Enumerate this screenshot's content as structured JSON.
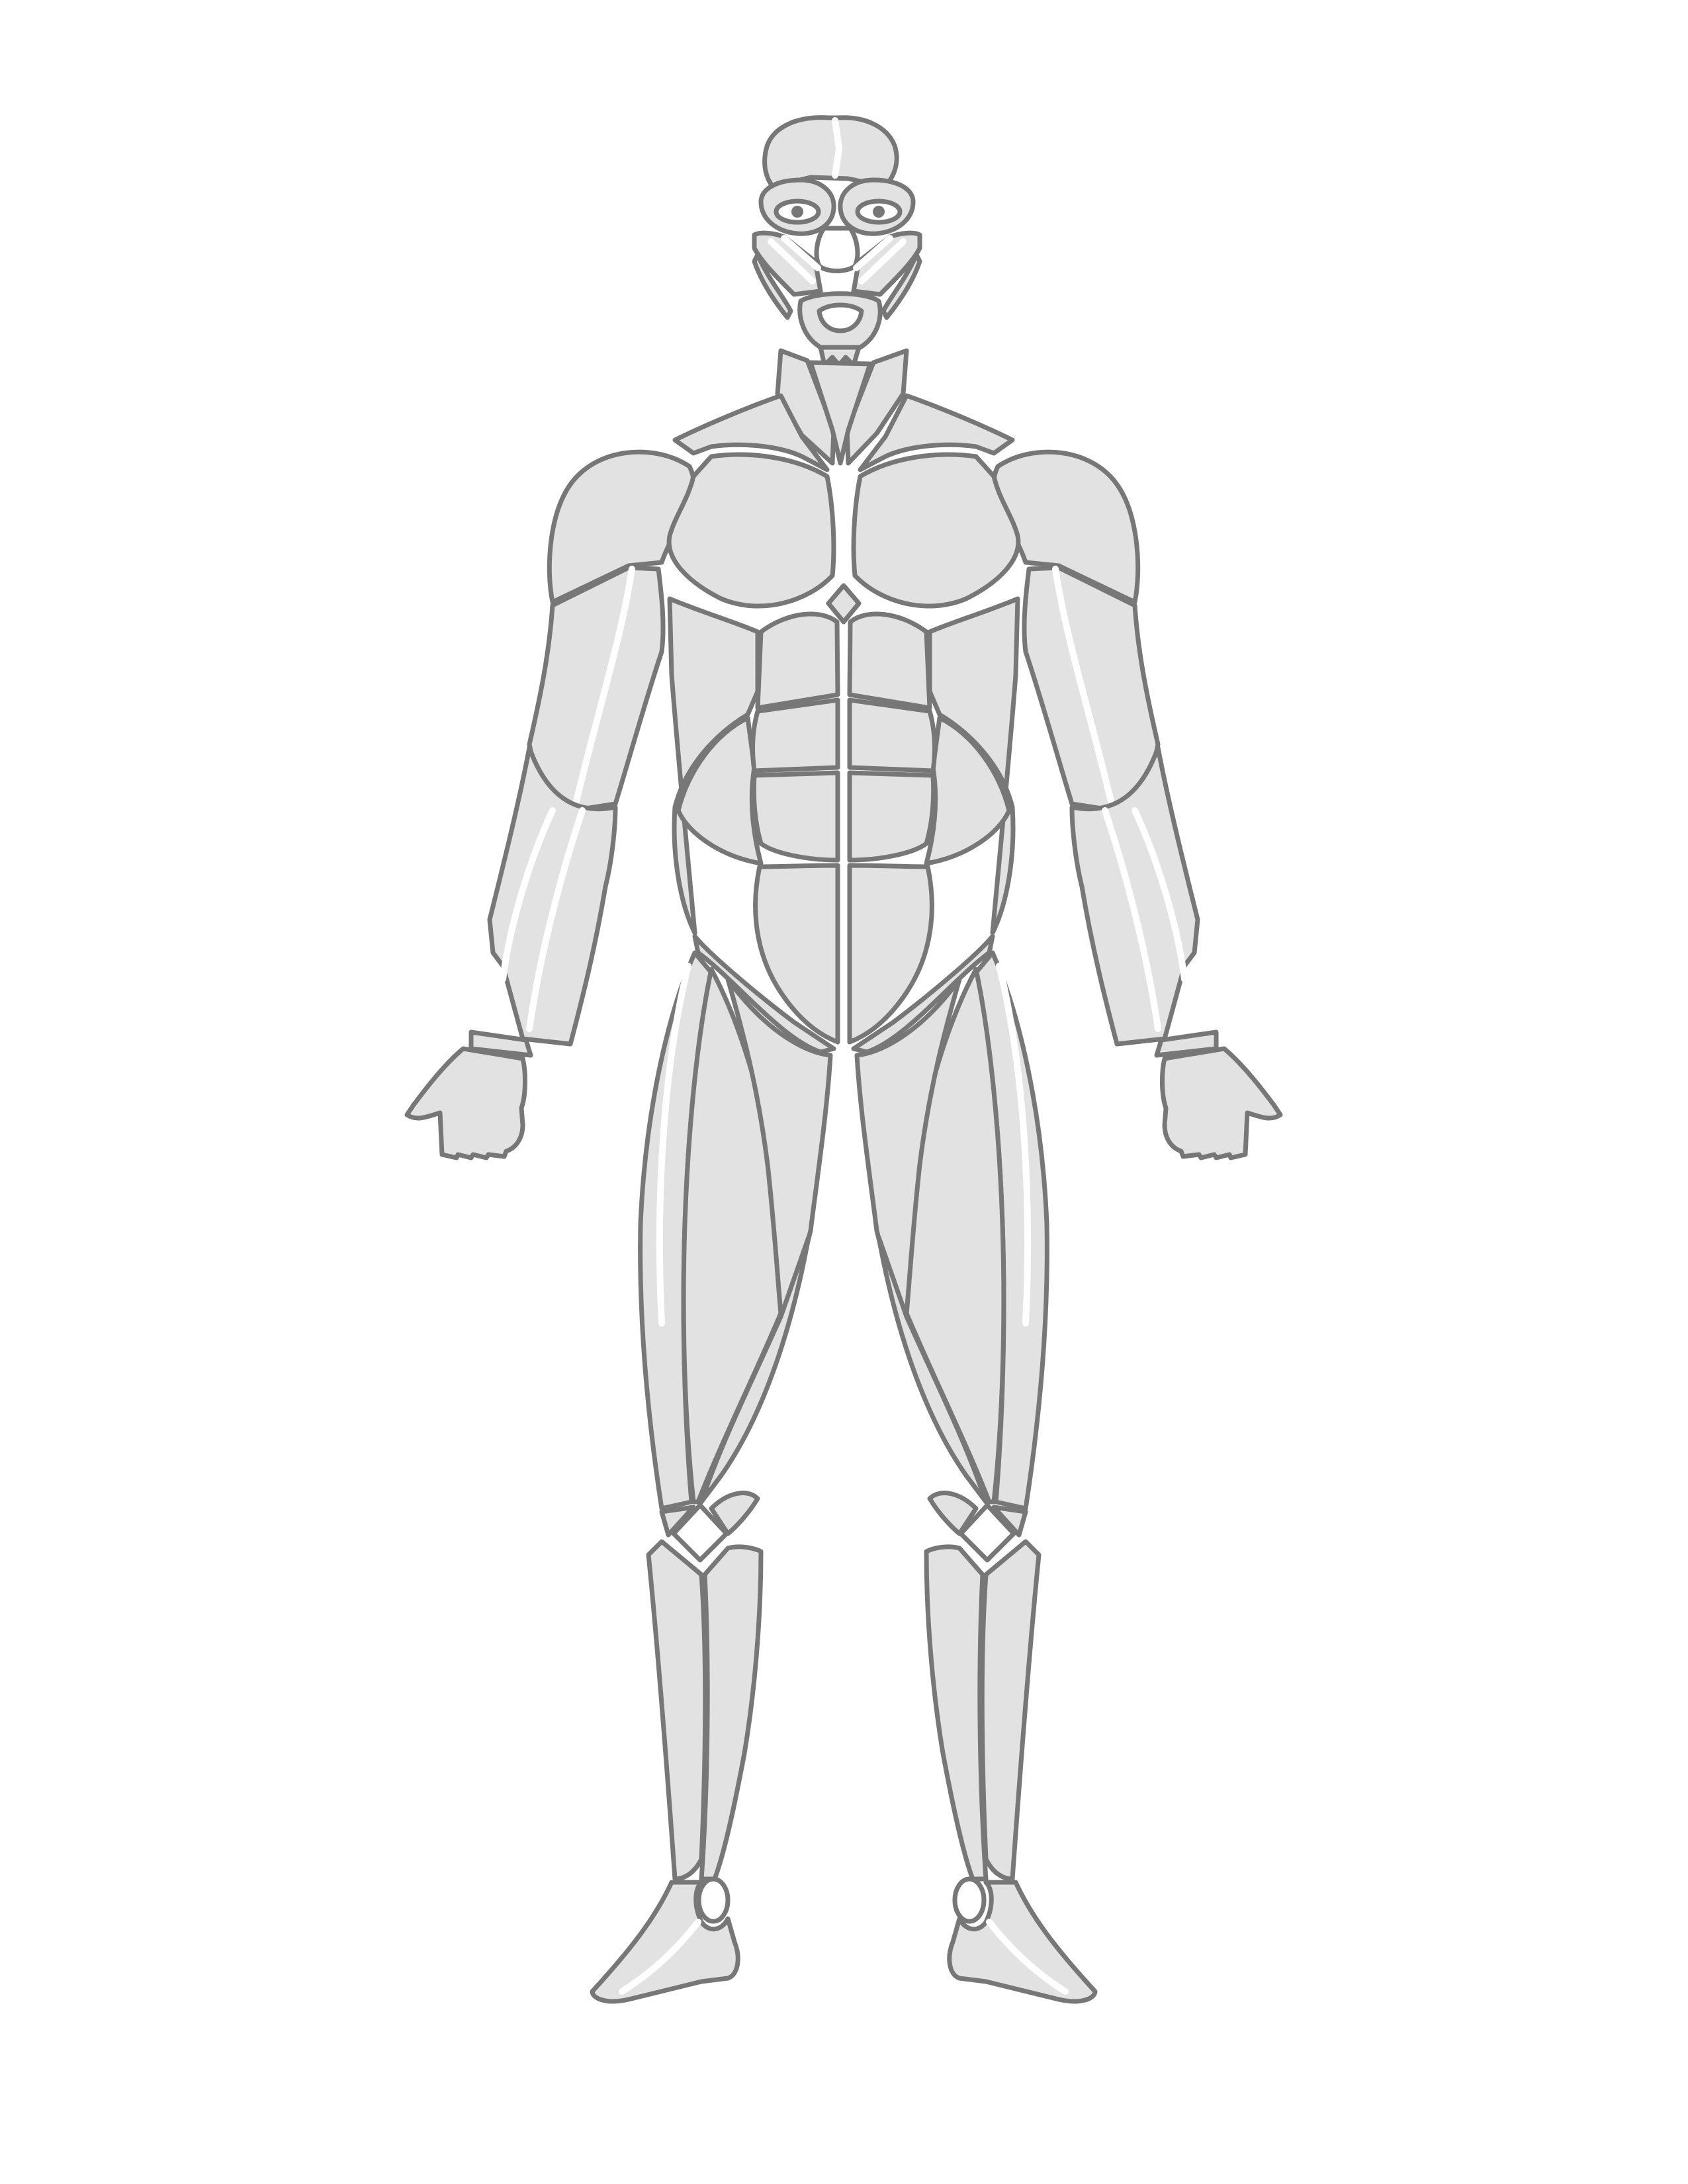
{
  "figure": {
    "type": "anterior muscular system outline",
    "colors": {
      "background": "#ffffff",
      "muscle_fill": "#e2e2e2",
      "outline": "#777777",
      "detail": "#ffffff"
    }
  },
  "regions": [
    {
      "name": "frontalis",
      "side": "center"
    },
    {
      "name": "orbicularis-oculi",
      "side": "left"
    },
    {
      "name": "orbicularis-oculi",
      "side": "right"
    },
    {
      "name": "nose",
      "side": "center"
    },
    {
      "name": "zygomaticus",
      "side": "left"
    },
    {
      "name": "zygomaticus",
      "side": "right"
    },
    {
      "name": "orbicularis-oris",
      "side": "center"
    },
    {
      "name": "sternocleidomastoid",
      "side": "left"
    },
    {
      "name": "sternocleidomastoid",
      "side": "right"
    },
    {
      "name": "trapezius",
      "side": "left"
    },
    {
      "name": "trapezius",
      "side": "right"
    },
    {
      "name": "deltoid",
      "side": "left"
    },
    {
      "name": "deltoid",
      "side": "right"
    },
    {
      "name": "pectoralis-major",
      "side": "left"
    },
    {
      "name": "pectoralis-major",
      "side": "right"
    },
    {
      "name": "biceps",
      "side": "left"
    },
    {
      "name": "biceps",
      "side": "right"
    },
    {
      "name": "forearm",
      "side": "left"
    },
    {
      "name": "forearm",
      "side": "right"
    },
    {
      "name": "hand",
      "side": "left"
    },
    {
      "name": "hand",
      "side": "right"
    },
    {
      "name": "rectus-abdominis",
      "side": "center"
    },
    {
      "name": "external-oblique",
      "side": "left"
    },
    {
      "name": "external-oblique",
      "side": "right"
    },
    {
      "name": "quadriceps",
      "side": "left"
    },
    {
      "name": "quadriceps",
      "side": "right"
    },
    {
      "name": "patella",
      "side": "left"
    },
    {
      "name": "patella",
      "side": "right"
    },
    {
      "name": "tibialis-anterior",
      "side": "left"
    },
    {
      "name": "tibialis-anterior",
      "side": "right"
    },
    {
      "name": "ankle",
      "side": "left"
    },
    {
      "name": "ankle",
      "side": "right"
    },
    {
      "name": "foot",
      "side": "left"
    },
    {
      "name": "foot",
      "side": "right"
    }
  ]
}
